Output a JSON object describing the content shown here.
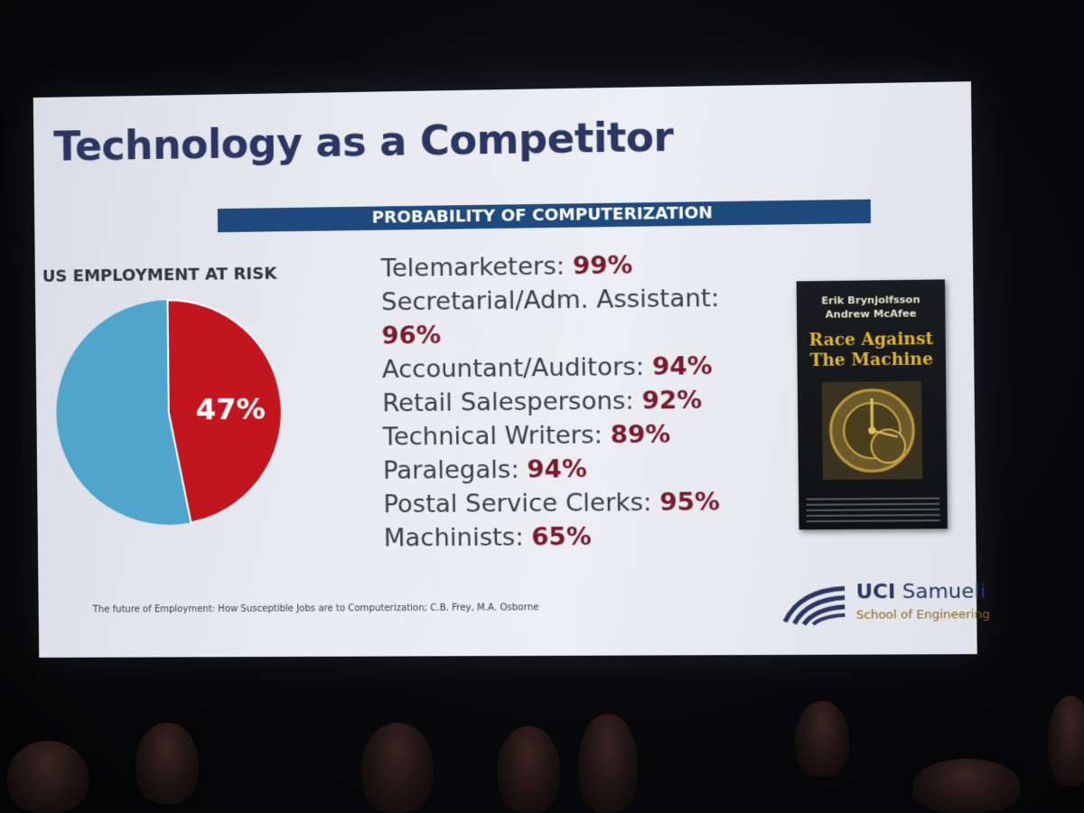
{
  "slide": {
    "title": "Technology as a Competitor",
    "banner": "PROBABILITY OF COMPUTERIZATION",
    "risk_label": "US EMPLOYMENT AT RISK",
    "pie_label": "47%",
    "citation": "The future of Employment: How Susceptible Jobs are to Computerization; C.B. Frey, M.A. Osborne"
  },
  "pie": {
    "at_risk_fraction": 0.47,
    "colors": {
      "at_risk": "#c2161f",
      "other": "#4fa5cc"
    }
  },
  "jobs": [
    {
      "label": "Telemarketers:",
      "pct": "99%"
    },
    {
      "label": "Secretarial/Adm. Assistant:",
      "pct": "96%"
    },
    {
      "label": "Accountant/Auditors:",
      "pct": "94%"
    },
    {
      "label": "Retail Salespersons:",
      "pct": "92%"
    },
    {
      "label": "Technical Writers:",
      "pct": "89%"
    },
    {
      "label": "Paralegals:",
      "pct": "94%"
    },
    {
      "label": "Postal Service Clerks:",
      "pct": "95%"
    },
    {
      "label": "Machinists:",
      "pct": "65%"
    }
  ],
  "book": {
    "author1": "Erik Brynjolfsson",
    "author2": "Andrew McAfee",
    "title_line1": "Race Against",
    "title_line2": "The Machine"
  },
  "logo": {
    "uci": "UCI",
    "samueli": "Samueli",
    "school": "School of Engineering"
  }
}
